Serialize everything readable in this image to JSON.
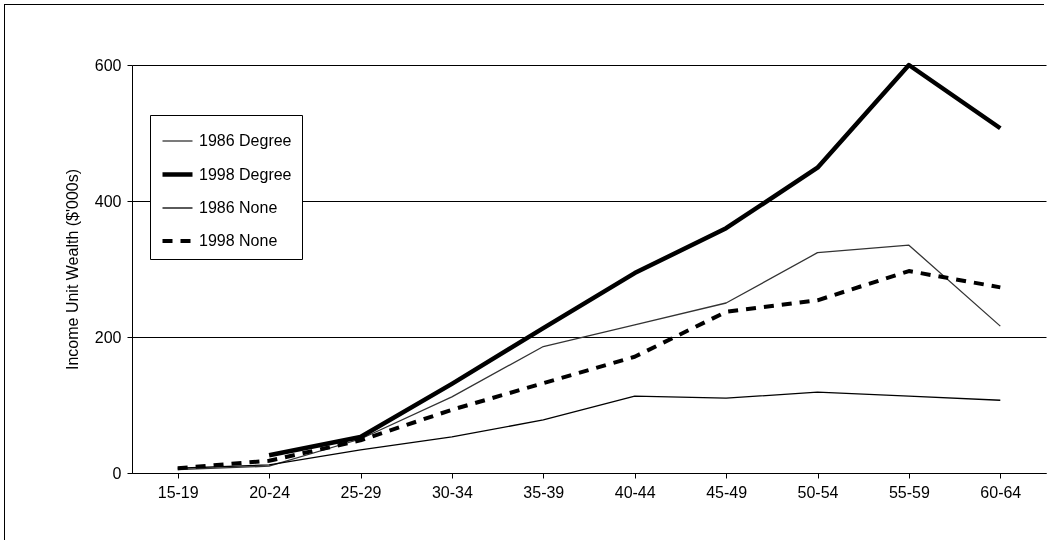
{
  "chart_data": {
    "type": "line",
    "ylabel": "Income Unit Wealth ($'000s)",
    "categories": [
      "15-19",
      "20-24",
      "25-29",
      "30-34",
      "35-39",
      "40-44",
      "45-49",
      "50-54",
      "55-59",
      "60-64"
    ],
    "ylim": [
      0,
      600
    ],
    "yticks": [
      0,
      200,
      400,
      600
    ],
    "grid": "y",
    "legend": "top left",
    "series": [
      {
        "name": "1986 Degree",
        "color": "#333333",
        "line_style": "solid",
        "values": [
          5,
          10,
          50,
          112,
          186,
          218,
          250,
          324,
          335,
          216
        ]
      },
      {
        "name": "1998 Degree",
        "color": "#000000",
        "line_style": "solid",
        "values": [
          null,
          26,
          53,
          131,
          213,
          294,
          360,
          449,
          600,
          507
        ]
      },
      {
        "name": "1986 None",
        "color": "#000000",
        "line_style": "solid",
        "values": [
          7,
          12,
          34,
          53,
          78,
          113,
          110,
          119,
          113,
          107
        ]
      },
      {
        "name": "1998 None",
        "color": "#000000",
        "line_style": "dashed",
        "values": [
          7,
          18,
          48,
          93,
          132,
          171,
          237,
          254,
          297,
          273
        ]
      }
    ]
  }
}
